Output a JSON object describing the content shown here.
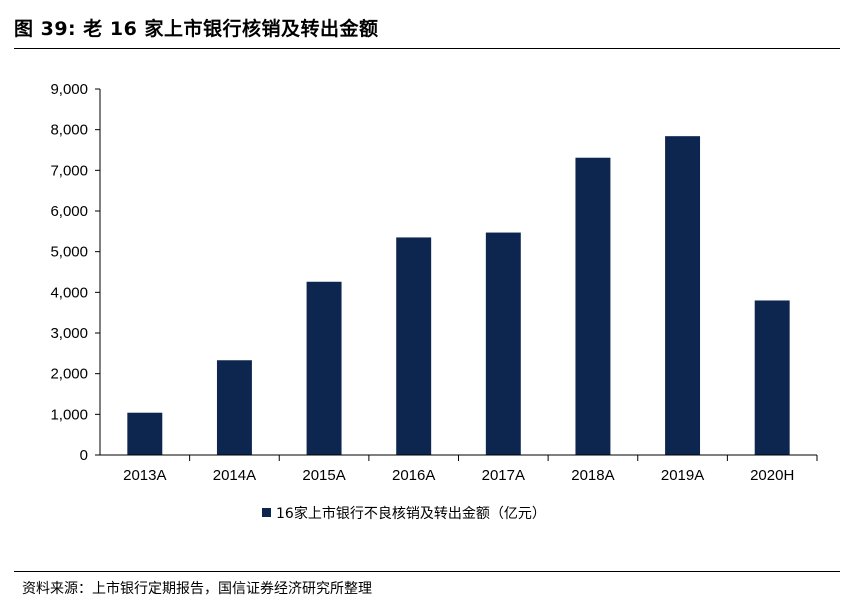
{
  "figure": {
    "title": "图 39:  老 16 家上市银行核销及转出金额",
    "source": "资料来源：上市银行定期报告，国信证券经济研究所整理"
  },
  "chart_data": {
    "type": "bar",
    "categories": [
      "2013A",
      "2014A",
      "2015A",
      "2016A",
      "2017A",
      "2018A",
      "2019A",
      "2020H"
    ],
    "series": [
      {
        "name": "16家上市银行不良核销及转出金额（亿元）",
        "values": [
          1040,
          2330,
          4260,
          5350,
          5470,
          7310,
          7840,
          3800
        ]
      }
    ],
    "ylim": [
      0,
      9000
    ],
    "yticks": [
      0,
      1000,
      2000,
      3000,
      4000,
      5000,
      6000,
      7000,
      8000,
      9000
    ],
    "ytick_labels": [
      "0",
      "1,000",
      "2,000",
      "3,000",
      "4,000",
      "5,000",
      "6,000",
      "7,000",
      "8,000",
      "9,000"
    ],
    "xlabel": "",
    "ylabel": "",
    "grid": false,
    "legend_position": "bottom-center",
    "bar_color": "#0d2650"
  }
}
